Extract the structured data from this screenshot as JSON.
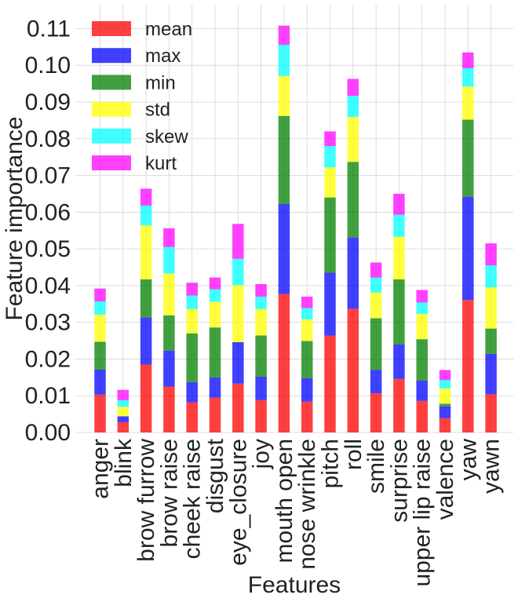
{
  "chart_data": {
    "type": "bar",
    "stacked": true,
    "title": "",
    "xlabel": "Features",
    "ylabel": "Feature importance",
    "ylim": [
      0,
      0.1165
    ],
    "yticks": [
      "0.00",
      "0.01",
      "0.02",
      "0.03",
      "0.04",
      "0.05",
      "0.06",
      "0.07",
      "0.08",
      "0.09",
      "0.10",
      "0.11"
    ],
    "grid": true,
    "legend_position": "top-left",
    "categories": [
      "anger",
      "blink",
      "brow furrow",
      "brow raise",
      "cheek raise",
      "disgust",
      "eye_closure",
      "joy",
      "mouth open",
      "nose wrinkle",
      "pitch",
      "roll",
      "smile",
      "surprise",
      "upper lip raise",
      "valence",
      "yaw",
      "yawn"
    ],
    "series": [
      {
        "name": "mean",
        "color": "#ff0000",
        "values": [
          0.0103,
          0.0028,
          0.0185,
          0.0125,
          0.0082,
          0.0095,
          0.0133,
          0.0088,
          0.0377,
          0.0084,
          0.0264,
          0.0337,
          0.0107,
          0.0146,
          0.0086,
          0.0039,
          0.0361,
          0.0104
        ]
      },
      {
        "name": "max",
        "color": "#0000ff",
        "values": [
          0.0068,
          0.0016,
          0.0128,
          0.0098,
          0.0055,
          0.0055,
          0.0113,
          0.0064,
          0.0245,
          0.0064,
          0.0171,
          0.0194,
          0.0063,
          0.0094,
          0.0055,
          0.0032,
          0.0281,
          0.011
        ]
      },
      {
        "name": "min",
        "color": "#008000",
        "values": [
          0.0076,
          0.0,
          0.0104,
          0.0096,
          0.0133,
          0.0136,
          0.0,
          0.0112,
          0.024,
          0.0101,
          0.0205,
          0.0206,
          0.0141,
          0.0177,
          0.0113,
          0.0007,
          0.021,
          0.0069
        ]
      },
      {
        "name": "std",
        "color": "#ffff00",
        "values": [
          0.0074,
          0.0026,
          0.0147,
          0.0114,
          0.0066,
          0.007,
          0.0155,
          0.0072,
          0.0109,
          0.0059,
          0.0082,
          0.0122,
          0.007,
          0.0116,
          0.0069,
          0.0042,
          0.009,
          0.0112
        ]
      },
      {
        "name": "skew",
        "color": "#00ffff",
        "values": [
          0.0036,
          0.0018,
          0.0054,
          0.0072,
          0.0037,
          0.0034,
          0.0072,
          0.0034,
          0.0085,
          0.0031,
          0.0058,
          0.0058,
          0.0041,
          0.006,
          0.0031,
          0.0023,
          0.005,
          0.006
        ]
      },
      {
        "name": "kurt",
        "color": "#ff00ff",
        "values": [
          0.0035,
          0.0028,
          0.0046,
          0.0051,
          0.0035,
          0.0032,
          0.0095,
          0.0034,
          0.0052,
          0.0031,
          0.004,
          0.0046,
          0.0041,
          0.0057,
          0.0034,
          0.0027,
          0.0043,
          0.006
        ]
      }
    ]
  }
}
